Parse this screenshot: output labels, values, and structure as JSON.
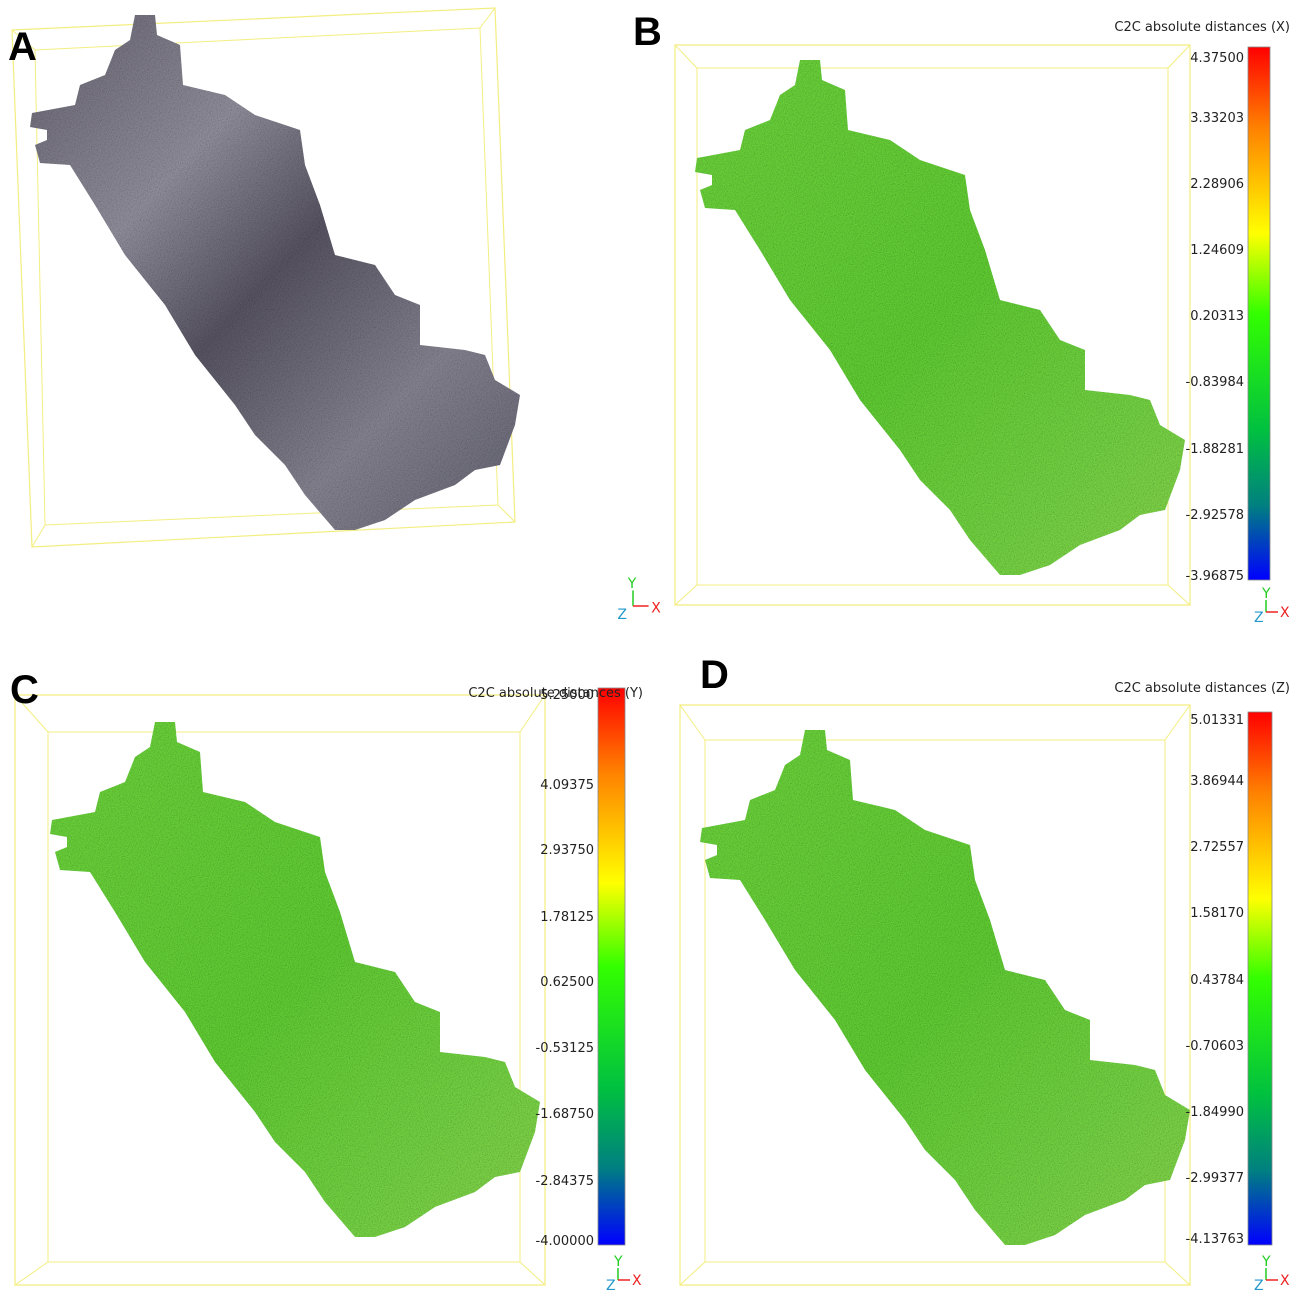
{
  "panels": [
    {
      "label": "A"
    },
    {
      "label": "B",
      "scale_title": "C2C absolute distances (X)",
      "scale_ticks": [
        "4.37500",
        "3.33203",
        "2.28906",
        "1.24609",
        "0.20313",
        "-0.83984",
        "-1.88281",
        "-2.92578",
        "-3.96875"
      ],
      "gizmos": [
        [
          "Y",
          "Z",
          "X"
        ],
        [
          "Y",
          "Z",
          "X"
        ]
      ]
    },
    {
      "label": "C",
      "scale_title": "C2C absolute distances (Y)",
      "scale_ticks": [
        "5.25000",
        "4.09375",
        "2.93750",
        "1.78125",
        "0.62500",
        "-0.53125",
        "-1.68750",
        "-2.84375",
        "-4.00000"
      ],
      "gizmos": [
        [
          "Y",
          "Z",
          "X"
        ]
      ]
    },
    {
      "label": "D",
      "scale_title": "C2C absolute distances (Z)",
      "scale_ticks": [
        "5.01331",
        "3.86944",
        "2.72557",
        "1.58170",
        "0.43784",
        "-0.70603",
        "-1.84990",
        "-2.99377",
        "-4.13763"
      ],
      "gizmos": [
        [
          "Y",
          "Z",
          "X"
        ]
      ]
    }
  ]
}
